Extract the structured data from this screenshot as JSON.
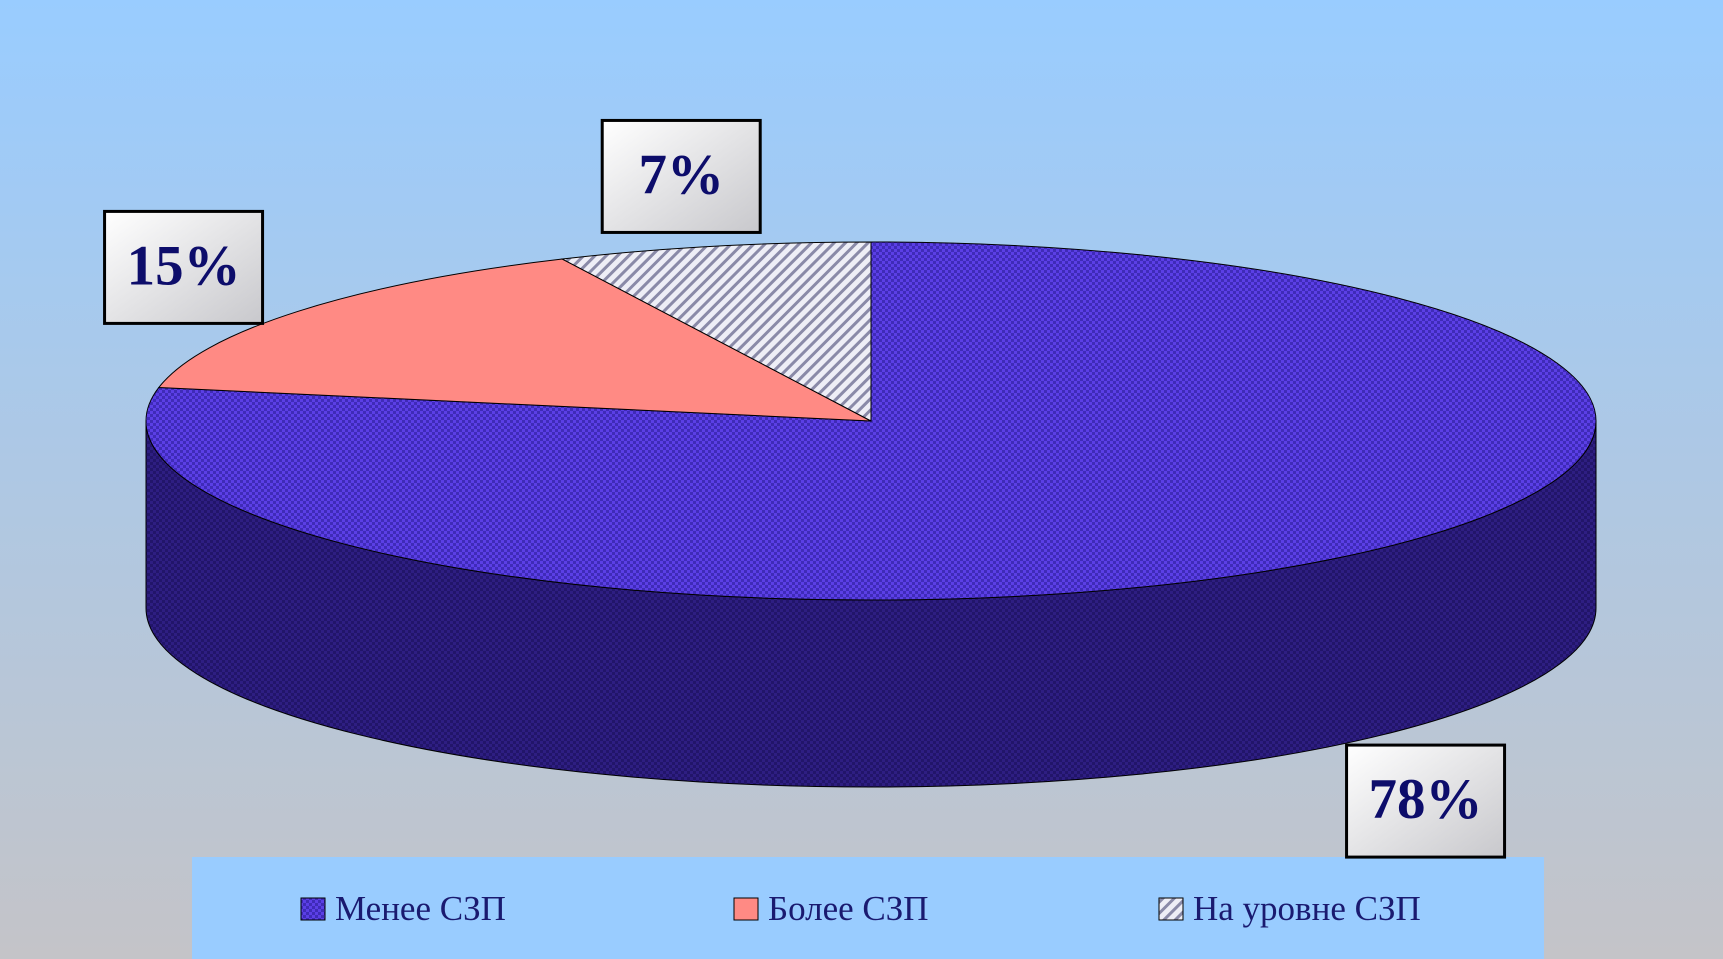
{
  "chart_data": {
    "type": "pie",
    "categories": [
      "Менее СЗП",
      "Более СЗП",
      "На уровне СЗП"
    ],
    "values": [
      78,
      15,
      7
    ],
    "value_labels": [
      "78%",
      "15%",
      "7%"
    ],
    "colors": [
      "#5b3fe6",
      "#ff8a84",
      "#d8d8e8"
    ],
    "legend": "bottom"
  }
}
